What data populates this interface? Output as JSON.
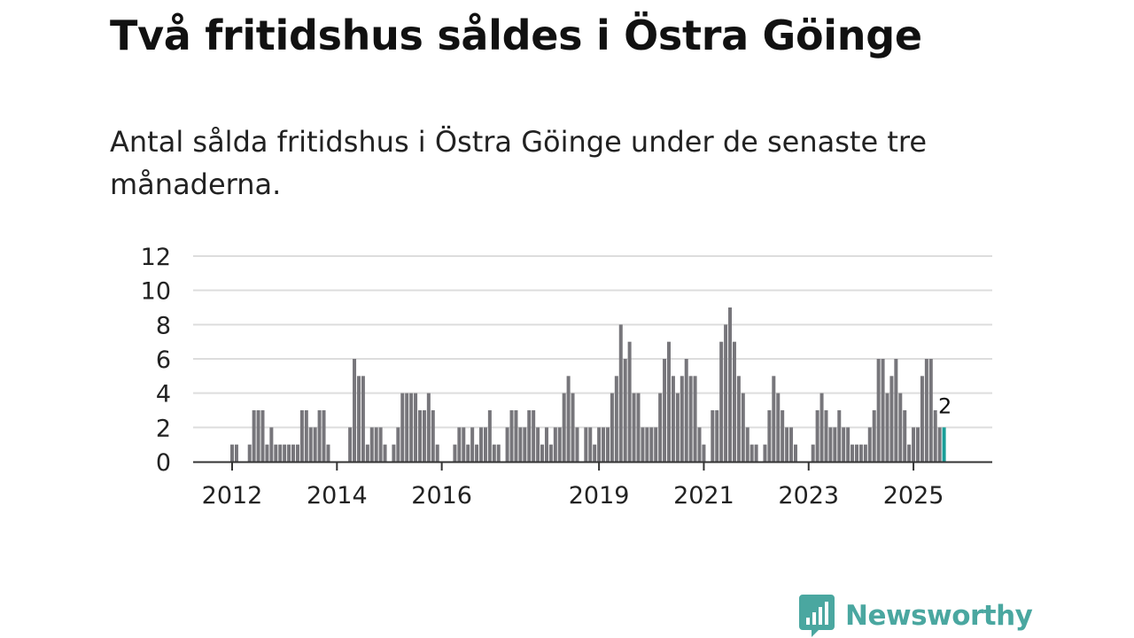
{
  "title": "Två fritidshus såldes i Östra Göinge",
  "subtitle": "Antal sålda fritidshus i Östra Göinge under de senaste tre månaderna.",
  "brand": {
    "name": "Newsworthy",
    "color": "#4aa7a0"
  },
  "colors": {
    "bar": "#77767b",
    "highlight": "#1a9e98",
    "grid": "#dddddd",
    "axis": "#333333"
  },
  "chart_data": {
    "type": "bar",
    "title": "Två fritidshus såldes i Östra Göinge",
    "subtitle": "Antal sålda fritidshus i Östra Göinge under de senaste tre månaderna.",
    "xlabel": "",
    "ylabel": "",
    "ylim": [
      0,
      12
    ],
    "yticks": [
      0,
      2,
      4,
      6,
      8,
      10,
      12
    ],
    "grid": true,
    "x_start": "2012-01",
    "frequency": "monthly",
    "xtick_labels": [
      {
        "label": "2012",
        "index": 0
      },
      {
        "label": "2014",
        "index": 24
      },
      {
        "label": "2016",
        "index": 48
      },
      {
        "label": "2019",
        "index": 84
      },
      {
        "label": "2021",
        "index": 108
      },
      {
        "label": "2023",
        "index": 132
      },
      {
        "label": "2025",
        "index": 156
      }
    ],
    "values": [
      1,
      1,
      0,
      0,
      1,
      3,
      3,
      3,
      1,
      2,
      1,
      1,
      1,
      1,
      1,
      1,
      3,
      3,
      2,
      2,
      3,
      3,
      1,
      0,
      0,
      0,
      0,
      2,
      6,
      5,
      5,
      1,
      2,
      2,
      2,
      1,
      0,
      1,
      2,
      4,
      4,
      4,
      4,
      3,
      3,
      4,
      3,
      1,
      0,
      0,
      0,
      1,
      2,
      2,
      1,
      2,
      1,
      2,
      2,
      3,
      1,
      1,
      0,
      2,
      3,
      3,
      2,
      2,
      3,
      3,
      2,
      1,
      2,
      1,
      2,
      2,
      4,
      5,
      4,
      2,
      0,
      2,
      2,
      1,
      2,
      2,
      2,
      4,
      5,
      8,
      6,
      7,
      4,
      4,
      2,
      2,
      2,
      2,
      4,
      6,
      7,
      5,
      4,
      5,
      6,
      5,
      5,
      2,
      1,
      0,
      3,
      3,
      7,
      8,
      9,
      7,
      5,
      4,
      2,
      1,
      1,
      0,
      1,
      3,
      5,
      4,
      3,
      2,
      2,
      1,
      0,
      0,
      0,
      1,
      3,
      4,
      3,
      2,
      2,
      3,
      2,
      2,
      1,
      1,
      1,
      1,
      2,
      3,
      6,
      6,
      4,
      5,
      6,
      4,
      3,
      1,
      2,
      2,
      5,
      6,
      6,
      3,
      2,
      2
    ],
    "highlight_last": true,
    "annotation": {
      "index": 163,
      "label": "2"
    }
  }
}
